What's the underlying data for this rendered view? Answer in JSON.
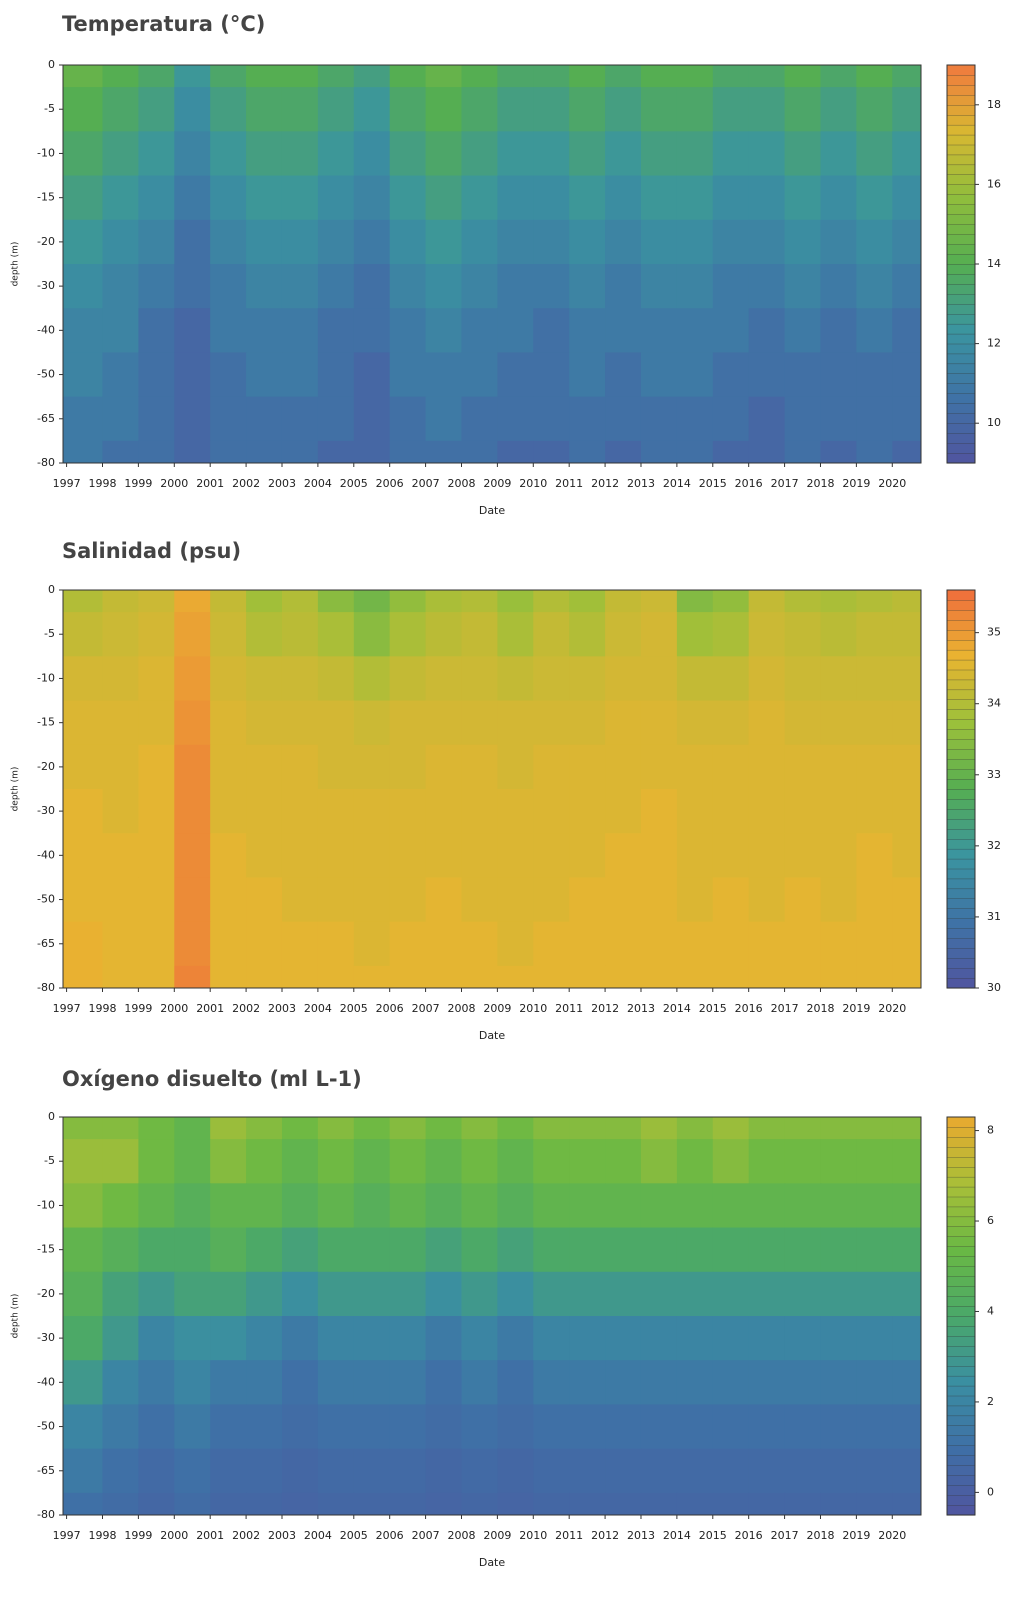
{
  "chart_data": [
    {
      "type": "contour",
      "title": "Temperatura (°C)",
      "xlabel": "Date",
      "ylabel": "depth (m)",
      "x": [
        1997,
        1998,
        1999,
        2000,
        2001,
        2002,
        2003,
        2004,
        2005,
        2006,
        2007,
        2008,
        2009,
        2010,
        2011,
        2012,
        2013,
        2014,
        2015,
        2016,
        2017,
        2018,
        2019,
        2020
      ],
      "depths": [
        0,
        -5,
        -10,
        -15,
        -20,
        -30,
        -40,
        -50,
        -65,
        -80
      ],
      "xlim": [
        1996.9,
        2020.8
      ],
      "xticks": [
        1997,
        1998,
        1999,
        2000,
        2001,
        2002,
        2003,
        2004,
        2005,
        2006,
        2007,
        2008,
        2009,
        2010,
        2011,
        2012,
        2013,
        2014,
        2015,
        2016,
        2017,
        2018,
        2019,
        2020
      ],
      "zlim": [
        9,
        19
      ],
      "zticks": [
        10,
        12,
        14,
        16,
        18
      ],
      "colors": [
        "#5055a0",
        "#3f73a6",
        "#3a94a0",
        "#55ae52",
        "#8fbd3c",
        "#d8b832",
        "#f07a3e"
      ],
      "z": [
        [
          14.5,
          14,
          13.5,
          12.5,
          13.5,
          14,
          14,
          13.5,
          13,
          14,
          14.5,
          14,
          13.5,
          13.5,
          14,
          13.5,
          14,
          14,
          13.5,
          13.5,
          14,
          13.5,
          14,
          13.5
        ],
        [
          14,
          13.5,
          13,
          12,
          13,
          13.5,
          13.5,
          13,
          12.5,
          13.5,
          14,
          13.5,
          13,
          13,
          13.5,
          13,
          13.5,
          13.5,
          13,
          13,
          13.5,
          13,
          13.5,
          13
        ],
        [
          13.5,
          13,
          12.5,
          11.5,
          12.5,
          13,
          13,
          12.5,
          12,
          13,
          13.5,
          13,
          12.5,
          12.5,
          13,
          12.5,
          13,
          13,
          12.5,
          12.5,
          13,
          12.5,
          13,
          12.5
        ],
        [
          13,
          12.5,
          12,
          11,
          12,
          12.5,
          12.5,
          12,
          11.5,
          12.5,
          13,
          12.5,
          12,
          12,
          12.5,
          12,
          12.5,
          12.5,
          12,
          12,
          12.5,
          12,
          12.5,
          12
        ],
        [
          12.5,
          12,
          11.5,
          10.5,
          11.5,
          12,
          12,
          11.5,
          11,
          12,
          12.5,
          12,
          11.5,
          11.5,
          12,
          11.5,
          12,
          12,
          11.5,
          11.5,
          12,
          11.5,
          12,
          11.5
        ],
        [
          12,
          11.5,
          11,
          10.5,
          11,
          11.5,
          11.5,
          11,
          10.5,
          11.5,
          12,
          11.5,
          11,
          11,
          11.5,
          11,
          11.5,
          11.5,
          11,
          11,
          11.5,
          11,
          11.5,
          11
        ],
        [
          11.5,
          11.5,
          10.5,
          10,
          11,
          11,
          11,
          10.5,
          10.5,
          11,
          11.5,
          11,
          11,
          10.5,
          11,
          11,
          11,
          11,
          11,
          10.5,
          11,
          10.5,
          11,
          10.5
        ],
        [
          11.5,
          11,
          10.5,
          10,
          10.5,
          11,
          11,
          10.5,
          10,
          11,
          11,
          11,
          10.5,
          10.5,
          11,
          10.5,
          11,
          11,
          10.5,
          10.5,
          10.5,
          10.5,
          10.5,
          10.5
        ],
        [
          11,
          11,
          10.5,
          10,
          10.5,
          10.5,
          10.5,
          10.5,
          10,
          10.5,
          11,
          10.5,
          10.5,
          10.5,
          10.5,
          10.5,
          10.5,
          10.5,
          10.5,
          10,
          10.5,
          10.5,
          10.5,
          10.5
        ],
        [
          11,
          10.5,
          10.5,
          10,
          10.5,
          10.5,
          10.5,
          10,
          10,
          10.5,
          10.5,
          10.5,
          10,
          10,
          10.5,
          10,
          10.5,
          10.5,
          10,
          10,
          10.5,
          10,
          10.5,
          10
        ]
      ]
    },
    {
      "type": "contour",
      "title": "Salinidad (psu)",
      "xlabel": "Date",
      "ylabel": "depth (m)",
      "x": [
        1997,
        1998,
        1999,
        2000,
        2001,
        2002,
        2003,
        2004,
        2005,
        2006,
        2007,
        2008,
        2009,
        2010,
        2011,
        2012,
        2013,
        2014,
        2015,
        2016,
        2017,
        2018,
        2019,
        2020
      ],
      "depths": [
        0,
        -5,
        -10,
        -15,
        -20,
        -30,
        -40,
        -50,
        -65,
        -80
      ],
      "xlim": [
        1996.9,
        2020.8
      ],
      "xticks": [
        1997,
        1998,
        1999,
        2000,
        2001,
        2002,
        2003,
        2004,
        2005,
        2006,
        2007,
        2008,
        2009,
        2010,
        2011,
        2012,
        2013,
        2014,
        2015,
        2016,
        2017,
        2018,
        2019,
        2020
      ],
      "zlim": [
        30,
        35.6
      ],
      "zticks": [
        30,
        31,
        32,
        33,
        34,
        35
      ],
      "colors": [
        "#5055a0",
        "#3f73a6",
        "#3a94a0",
        "#55ae52",
        "#9cc03a",
        "#e9b431",
        "#ef6d3c"
      ],
      "z": [
        [
          34,
          34.2,
          34.3,
          34.8,
          34.2,
          33.8,
          34,
          33.5,
          33.2,
          33.6,
          33.9,
          34,
          33.7,
          34,
          33.8,
          34.2,
          34.3,
          33.4,
          33.6,
          34.2,
          34,
          33.9,
          34,
          34.1
        ],
        [
          34.2,
          34.3,
          34.4,
          34.9,
          34.3,
          34,
          34.1,
          33.9,
          33.5,
          33.9,
          34.1,
          34.2,
          33.9,
          34.2,
          34,
          34.3,
          34.4,
          33.8,
          33.9,
          34.3,
          34.2,
          34.1,
          34.2,
          34.2
        ],
        [
          34.4,
          34.4,
          34.5,
          35,
          34.4,
          34.3,
          34.3,
          34.2,
          34,
          34.2,
          34.3,
          34.3,
          34.2,
          34.3,
          34.3,
          34.4,
          34.4,
          34.2,
          34.2,
          34.4,
          34.3,
          34.3,
          34.3,
          34.3
        ],
        [
          34.5,
          34.5,
          34.5,
          35.1,
          34.5,
          34.4,
          34.4,
          34.4,
          34.3,
          34.4,
          34.4,
          34.4,
          34.4,
          34.4,
          34.4,
          34.5,
          34.5,
          34.4,
          34.4,
          34.5,
          34.4,
          34.4,
          34.4,
          34.4
        ],
        [
          34.5,
          34.5,
          34.6,
          35.2,
          34.5,
          34.5,
          34.5,
          34.4,
          34.4,
          34.4,
          34.5,
          34.5,
          34.4,
          34.5,
          34.5,
          34.5,
          34.5,
          34.5,
          34.5,
          34.5,
          34.5,
          34.5,
          34.5,
          34.5
        ],
        [
          34.6,
          34.5,
          34.6,
          35.2,
          34.5,
          34.5,
          34.5,
          34.5,
          34.5,
          34.5,
          34.5,
          34.5,
          34.5,
          34.5,
          34.5,
          34.5,
          34.6,
          34.5,
          34.5,
          34.5,
          34.5,
          34.5,
          34.5,
          34.5
        ],
        [
          34.6,
          34.6,
          34.6,
          35.2,
          34.6,
          34.5,
          34.5,
          34.5,
          34.5,
          34.5,
          34.5,
          34.5,
          34.5,
          34.5,
          34.5,
          34.6,
          34.6,
          34.5,
          34.5,
          34.5,
          34.5,
          34.5,
          34.6,
          34.5
        ],
        [
          34.6,
          34.6,
          34.6,
          35.2,
          34.6,
          34.6,
          34.5,
          34.5,
          34.5,
          34.5,
          34.6,
          34.5,
          34.5,
          34.5,
          34.6,
          34.6,
          34.6,
          34.5,
          34.6,
          34.5,
          34.6,
          34.5,
          34.6,
          34.6
        ],
        [
          34.7,
          34.6,
          34.6,
          35.2,
          34.6,
          34.6,
          34.6,
          34.6,
          34.5,
          34.6,
          34.6,
          34.6,
          34.5,
          34.6,
          34.6,
          34.6,
          34.6,
          34.6,
          34.6,
          34.6,
          34.6,
          34.6,
          34.6,
          34.6
        ],
        [
          34.7,
          34.6,
          34.6,
          35.3,
          34.6,
          34.6,
          34.6,
          34.6,
          34.6,
          34.6,
          34.6,
          34.6,
          34.6,
          34.6,
          34.6,
          34.6,
          34.6,
          34.6,
          34.6,
          34.6,
          34.6,
          34.6,
          34.6,
          34.6
        ]
      ]
    },
    {
      "type": "contour",
      "title": "Oxígeno disuelto (ml L-1)",
      "xlabel": "Date",
      "ylabel": "depth (m)",
      "x": [
        1997,
        1998,
        1999,
        2000,
        2001,
        2002,
        2003,
        2004,
        2005,
        2006,
        2007,
        2008,
        2009,
        2010,
        2011,
        2012,
        2013,
        2014,
        2015,
        2016,
        2017,
        2018,
        2019,
        2020
      ],
      "depths": [
        0,
        -5,
        -10,
        -15,
        -20,
        -30,
        -40,
        -50,
        -65,
        -80
      ],
      "xlim": [
        1996.9,
        2020.8
      ],
      "xticks": [
        1997,
        1998,
        1999,
        2000,
        2001,
        2002,
        2003,
        2004,
        2005,
        2006,
        2007,
        2008,
        2009,
        2010,
        2011,
        2012,
        2013,
        2014,
        2015,
        2016,
        2017,
        2018,
        2019,
        2020
      ],
      "zlim": [
        -0.5,
        8.3
      ],
      "zticks": [
        0,
        2,
        4,
        6,
        8
      ],
      "colors": [
        "#5055a0",
        "#3f6fa6",
        "#3a8ea2",
        "#4aa86a",
        "#69b844",
        "#a9bf38",
        "#e9a92f"
      ],
      "z": [
        [
          6,
          6,
          5.5,
          5,
          6.5,
          6,
          5.5,
          6,
          5.5,
          6,
          5.5,
          6,
          5.5,
          6,
          6,
          6,
          6.5,
          6,
          6.5,
          6,
          6,
          6,
          6,
          6
        ],
        [
          6.5,
          6.5,
          5.5,
          5,
          6,
          5.5,
          5,
          5.5,
          5,
          5.5,
          5,
          5.5,
          5,
          5.5,
          5.5,
          5.5,
          6,
          5.5,
          6,
          5.5,
          5.5,
          5.5,
          5.5,
          5.5
        ],
        [
          6,
          5.5,
          5,
          4.5,
          5,
          5,
          4.5,
          5,
          4.5,
          5,
          4.5,
          5,
          4.5,
          5,
          5,
          5,
          5,
          5,
          5,
          5,
          5,
          5,
          5,
          5
        ],
        [
          5,
          4.5,
          4,
          4,
          4.5,
          4,
          3.5,
          4,
          4,
          4,
          3.5,
          4,
          3.5,
          4,
          4,
          4,
          4,
          4,
          4,
          4,
          4,
          4,
          4,
          4
        ],
        [
          4.5,
          3.5,
          3,
          3.5,
          3.5,
          3,
          2.5,
          3,
          3,
          3,
          2.5,
          3,
          2.5,
          3,
          3,
          3,
          3,
          3,
          3,
          3,
          3,
          3,
          3,
          3
        ],
        [
          4,
          3,
          2,
          2.5,
          2.5,
          2,
          1.5,
          2,
          2,
          2,
          1.5,
          2,
          1.5,
          2,
          2,
          2,
          2,
          2,
          2,
          2,
          2,
          2,
          2,
          2
        ],
        [
          3,
          2,
          1.5,
          2,
          1.5,
          1.5,
          1,
          1.5,
          1.5,
          1.5,
          1,
          1.5,
          1,
          1.5,
          1.5,
          1.5,
          1.5,
          1.5,
          1.5,
          1.5,
          1.5,
          1.5,
          1.5,
          1.5
        ],
        [
          2,
          1.5,
          1,
          1.5,
          1,
          1,
          0.8,
          1,
          1,
          1,
          0.8,
          1,
          0.8,
          1,
          1,
          1,
          1,
          1,
          1,
          1,
          1,
          1,
          1,
          1
        ],
        [
          1.5,
          1,
          0.7,
          1,
          0.7,
          0.7,
          0.5,
          0.7,
          0.7,
          0.7,
          0.5,
          0.7,
          0.5,
          0.7,
          0.7,
          0.7,
          0.7,
          0.7,
          0.7,
          0.7,
          0.7,
          0.7,
          0.7,
          0.7
        ],
        [
          1,
          0.8,
          0.5,
          0.8,
          0.5,
          0.5,
          0.4,
          0.5,
          0.5,
          0.5,
          0.4,
          0.5,
          0.4,
          0.5,
          0.5,
          0.5,
          0.5,
          0.5,
          0.5,
          0.5,
          0.5,
          0.5,
          0.5,
          0.5
        ]
      ]
    }
  ]
}
